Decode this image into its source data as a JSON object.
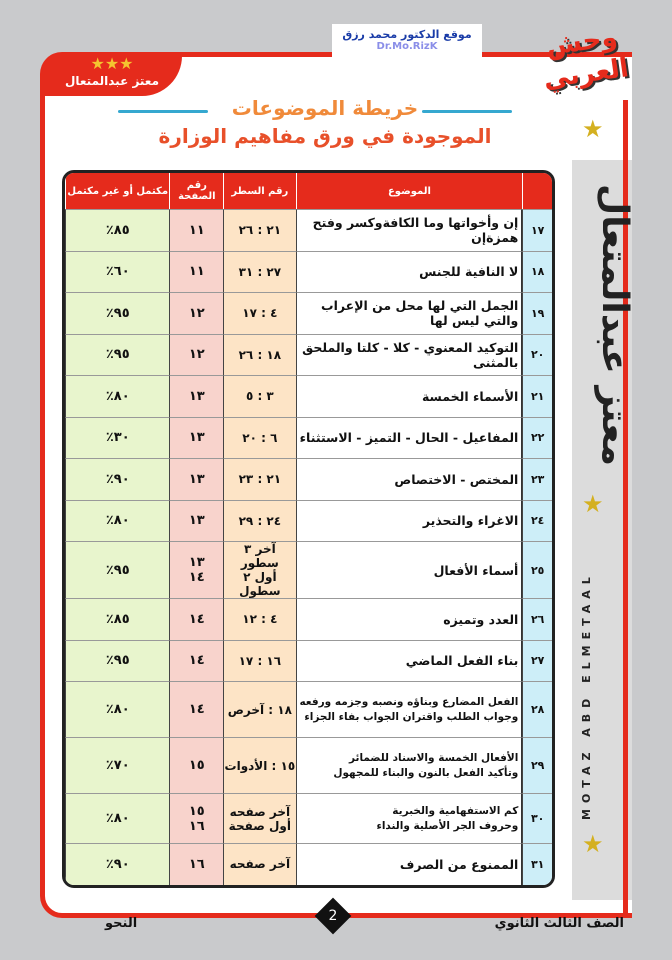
{
  "header": {
    "site_name": "موقع الدكتور محمد رزق",
    "site_en": "Dr.Mo.RizK",
    "logo_text": "وحش العربي",
    "badge_name": "معتز عبدالمتعال",
    "badge_stars": "★★★",
    "title_line1": "خريطة الموضوعات",
    "title_line2": "الموجودة في ورق مفاهيم الوزارة"
  },
  "sidebar": {
    "vertical_name_ar": "معتز عبدالمتعال",
    "vertical_name_en": "MOTAZ ABD ELMETAAL"
  },
  "table": {
    "columns": [
      "",
      "الموضوع",
      "رقم السطر",
      "رقم الصفحة",
      "مكتمل أو غير مكتمل"
    ],
    "rows": [
      {
        "num": "١٧",
        "topic": "إن وأخواتها وما الكافةوكسر وفتح همزةإن",
        "lines": "٢١ : ٢٦",
        "page": "١١",
        "complete": "٨٥٪"
      },
      {
        "num": "١٨",
        "topic": "لا النافية للجنس",
        "lines": "٢٧ : ٣١",
        "page": "١١",
        "complete": "٦٠٪"
      },
      {
        "num": "١٩",
        "topic": "الجمل التي لها محل من الإعراب والتي ليس لها",
        "lines": "٤ : ١٧",
        "page": "١٢",
        "complete": "٩٥٪"
      },
      {
        "num": "٢٠",
        "topic": "التوكيد المعنوي - كلا - كلتا والملحق بالمثنى",
        "lines": "١٨ : ٢٦",
        "page": "١٢",
        "complete": "٩٥٪"
      },
      {
        "num": "٢١",
        "topic": "الأسماء الخمسة",
        "lines": "٣ : ٥",
        "page": "١٣",
        "complete": "٨٠٪"
      },
      {
        "num": "٢٢",
        "topic": "المفاعيل - الحال - التميز - الاستثناء",
        "lines": "٦ : ٢٠",
        "page": "١٣",
        "complete": "٣٠٪"
      },
      {
        "num": "٢٣",
        "topic": "المختص - الاختصاص",
        "lines": "٢١ : ٢٣",
        "page": "١٣",
        "complete": "٩٠٪"
      },
      {
        "num": "٢٤",
        "topic": "الاغراء والتحذير",
        "lines": "٢٤ : ٢٩",
        "page": "١٣",
        "complete": "٨٠٪"
      },
      {
        "num": "٢٥",
        "topic": "أسماء الأفعال",
        "lines": "آخر ٣ سطور\nأول ٢ سطول",
        "page": "١٣\n١٤",
        "complete": "٩٥٪"
      },
      {
        "num": "٢٦",
        "topic": "العدد وتميزه",
        "lines": "٤ : ١٢",
        "page": "١٤",
        "complete": "٨٥٪"
      },
      {
        "num": "٢٧",
        "topic": "بناء الفعل الماضي",
        "lines": "١٦ : ١٧",
        "page": "١٤",
        "complete": "٩٥٪"
      },
      {
        "num": "٢٨",
        "topic": "الفعل المضارع وبناؤه ونصبه وجزمه ورفعه\nوجواب الطلب واقتران الجواب بفاء الجزاء",
        "lines": "١٨ : آخرص",
        "page": "١٤",
        "complete": "٨٠٪"
      },
      {
        "num": "٢٩",
        "topic": "الأفعال الخمسة والاسناد للضمائر\nوتأكيد الفعل بالنون والبناء للمجهول",
        "lines": "١٥ : الأدوات",
        "page": "١٥",
        "complete": "٧٠٪"
      },
      {
        "num": "٣٠",
        "topic": "كم الاستفهامية والخبرية\nوحروف الجر الأصلية والنداء",
        "lines": "آخر صفحه\nأول صفحة",
        "page": "١٥\n١٦",
        "complete": "٨٠٪"
      },
      {
        "num": "٣١",
        "topic": "الممنوع من الصرف",
        "lines": "آخر صفحه",
        "page": "١٦",
        "complete": "٩٠٪"
      }
    ]
  },
  "footer": {
    "grade": "الصف الثالث الثانوي",
    "subject": "النحو",
    "page_number": "2"
  },
  "colors": {
    "accent": "#e52b1c",
    "number_col": "#cdeef8",
    "line_col": "#fde4c6",
    "page_col": "#f8d3cc",
    "complete_col": "#e8f5cd"
  }
}
